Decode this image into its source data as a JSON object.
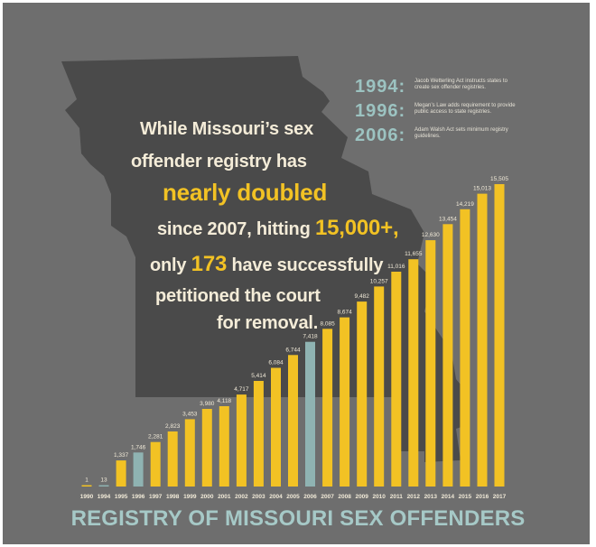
{
  "headline": {
    "l1": "While Missouri’s sex",
    "l2": "offender registry has",
    "l3": "nearly doubled",
    "l4a": "since 2007, hitting ",
    "l4b": "15,000+,",
    "l5a": "only ",
    "l5b": "173",
    "l5c": " have successfully",
    "l6": "petitioned the court",
    "l7": "for removal."
  },
  "legend": [
    {
      "year": "1994:",
      "text": "Jacob Wetterling Act instructs states to create sex offender registries."
    },
    {
      "year": "1996:",
      "text": "Megan’s Law adds requirement to provide public access to state registries."
    },
    {
      "year": "2006:",
      "text": "Adam Walsh Act sets minimum registry guidelines."
    }
  ],
  "colors": {
    "background": "#6e6e6e",
    "map": "#4a4a4a",
    "bar": "#f2c224",
    "highlight_bar": "#8fb3b2",
    "headline_text": "#f4ecd8",
    "headline_accent": "#f2c224",
    "title": "#a6c9c7"
  },
  "chart_data": {
    "type": "bar",
    "title": "REGISTRY OF MISSOURI SEX OFFENDERS",
    "categories": [
      "1990",
      "1994",
      "1995",
      "1996",
      "1997",
      "1998",
      "1999",
      "2000",
      "2001",
      "2002",
      "2003",
      "2004",
      "2005",
      "2006",
      "2007",
      "2008",
      "2009",
      "2010",
      "2011",
      "2012",
      "2013",
      "2014",
      "2015",
      "2016",
      "2017"
    ],
    "values": [
      1,
      13,
      1337,
      1746,
      2281,
      2823,
      3453,
      3980,
      4118,
      4717,
      5414,
      6084,
      6744,
      7418,
      8085,
      8674,
      9482,
      10257,
      11016,
      11655,
      12630,
      13454,
      14219,
      15013,
      15505
    ],
    "value_labels": [
      "1",
      "13",
      "1,337",
      "1,746",
      "2,281",
      "2,823",
      "3,453",
      "3,980",
      "4,118",
      "4,717",
      "5,414",
      "6,084",
      "6,744",
      "7,418",
      "8,085",
      "8,674",
      "9,482",
      "10,257",
      "11,016",
      "11,655",
      "12,630",
      "13,454",
      "14,219",
      "15,013",
      "15,505"
    ],
    "highlighted": [
      "1994",
      "1996",
      "2006"
    ],
    "ylim": [
      0,
      15505
    ],
    "grid": false
  }
}
